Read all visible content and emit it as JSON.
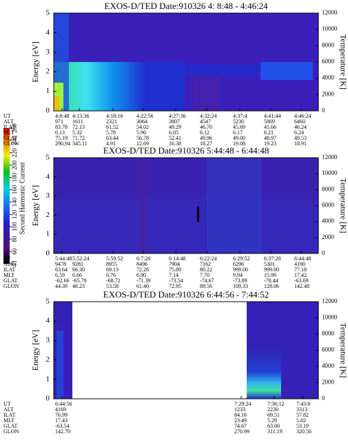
{
  "colorbar": {
    "label": "Second Harmonic Current",
    "lim": [
      40,
      260
    ],
    "ticks": [
      40,
      60,
      80,
      100,
      120,
      140,
      160,
      180,
      200,
      220,
      240,
      260
    ]
  },
  "chart_data": [
    {
      "type": "spectrogram",
      "title": "EXOS-D/TED   Date:910326  4: 8:48 - 4:46:24",
      "ylabel": "Energy [eV]",
      "y2label": "Temperature [K]",
      "ylim": [
        0,
        5
      ],
      "yticks": [
        0,
        1,
        2,
        3,
        4,
        5
      ],
      "y2lim": [
        0,
        12000
      ],
      "y2ticks": [
        0,
        2000,
        4000,
        6000,
        8000,
        10000,
        12000
      ],
      "ephemeris": [
        {
          "label": "UT",
          "values": [
            "4:8:48",
            "4:13:36",
            "4:18:16",
            "4:22:56",
            "4:27:36",
            "4:32:24",
            "4:37:4",
            "4:41:44",
            "4:46:24"
          ]
        },
        {
          "label": "ALT",
          "values": [
            "971",
            "1611",
            "2321",
            "3064",
            "3807",
            "4547",
            "5230",
            "5869",
            "6460"
          ]
        },
        {
          "label": "ILAT",
          "values": [
            "83.78",
            "72.13",
            "61.52",
            "54.02",
            "49.29",
            "46.70",
            "45.69",
            "45.66",
            "46.24"
          ]
        },
        {
          "label": "MLT",
          "values": [
            "0.13",
            "5.32",
            "5.78",
            "5.96",
            "6.05",
            "6.12",
            "6.17",
            "6.21",
            "6.24"
          ]
        },
        {
          "label": "GLAT",
          "values": [
            "75.19",
            "71.72",
            "63.44",
            "56.78",
            "52.41",
            "49.96",
            "49.00",
            "48.97",
            "49.53"
          ]
        },
        {
          "label": "GLON",
          "values": [
            "290.94",
            "345.11",
            "4.91",
            "12.69",
            "16.38",
            "18.27",
            "19.08",
            "19.23",
            "18.91"
          ]
        }
      ]
    },
    {
      "type": "spectrogram",
      "title": "EXOS-D/TED   Date:910326  5:44:48 - 6:44:48",
      "ylabel": "Energy [eV]",
      "y2label": "Temperature [K]",
      "ylim": [
        0,
        5
      ],
      "yticks": [
        0,
        1,
        2,
        3,
        4,
        5
      ],
      "y2lim": [
        0,
        12000
      ],
      "y2ticks": [
        0,
        2000,
        4000,
        6000,
        8000,
        10000,
        12000
      ],
      "ephemeris": [
        {
          "label": "UT",
          "values": [
            "5:44:48",
            "5:52:24",
            "5:59:52",
            "6:7:20",
            "6:14:48",
            "6:22:24",
            "6:29:52",
            "6:37:20",
            "6:44:48"
          ]
        },
        {
          "label": "ALT",
          "values": [
            "9478",
            "9281",
            "8955",
            "8496",
            "7904",
            "7162",
            "6296",
            "5301",
            "4190"
          ]
        },
        {
          "label": "ILAT",
          "values": [
            "63.64",
            "66.30",
            "69.13",
            "72.28",
            "75.89",
            "80.22",
            "999.00",
            "999.00",
            "77.18"
          ]
        },
        {
          "label": "MLT",
          "values": [
            "6.59",
            "6.66",
            "6.76",
            "6.90",
            "7.14",
            "7.70",
            "9.94",
            "15.99",
            "17.42"
          ]
        },
        {
          "label": "GLAT",
          "values": [
            "-62.66",
            "-65.79",
            "-68.72",
            "-71.39",
            "-73.54",
            "-74.67",
            "-73.89",
            "-70.44",
            "-63.69"
          ]
        },
        {
          "label": "GLON",
          "values": [
            "44.39",
            "48.23",
            "53.58",
            "61.40",
            "72.95",
            "89.56",
            "109.33",
            "128.06",
            "142.48"
          ]
        }
      ]
    },
    {
      "type": "spectrogram",
      "title": "EXOS-D/TED   Date:910326  6:44:56 - 7:44:52",
      "ylabel": "Energy [eV]",
      "y2label": "Temperature [K]",
      "ylim": [
        0,
        5
      ],
      "yticks": [
        0,
        1,
        2,
        3,
        4,
        5
      ],
      "y2lim": [
        0,
        12000
      ],
      "y2ticks": [
        0,
        2000,
        4000,
        6000,
        8000,
        10000,
        12000
      ],
      "ephemeris": [
        {
          "label": "UT",
          "values": [
            "6:44:56",
            "7:29:24",
            "7:36:12",
            "7:43:0"
          ]
        },
        {
          "label": "ALT",
          "values": [
            "4169",
            "1233",
            "2230",
            "3313"
          ]
        },
        {
          "label": "ILAT",
          "values": [
            "76.99",
            "84.16",
            "69.51",
            "57.82"
          ]
        },
        {
          "label": "MLT",
          "values": [
            "17.43",
            "23.49",
            "5.29",
            "5.82"
          ]
        },
        {
          "label": "GLAT",
          "values": [
            "-63.54",
            "74.67",
            "63.00",
            "53.19"
          ]
        },
        {
          "label": "GLON",
          "values": [
            "142.70",
            "270.99",
            "311.19",
            "320.56"
          ]
        }
      ]
    }
  ]
}
